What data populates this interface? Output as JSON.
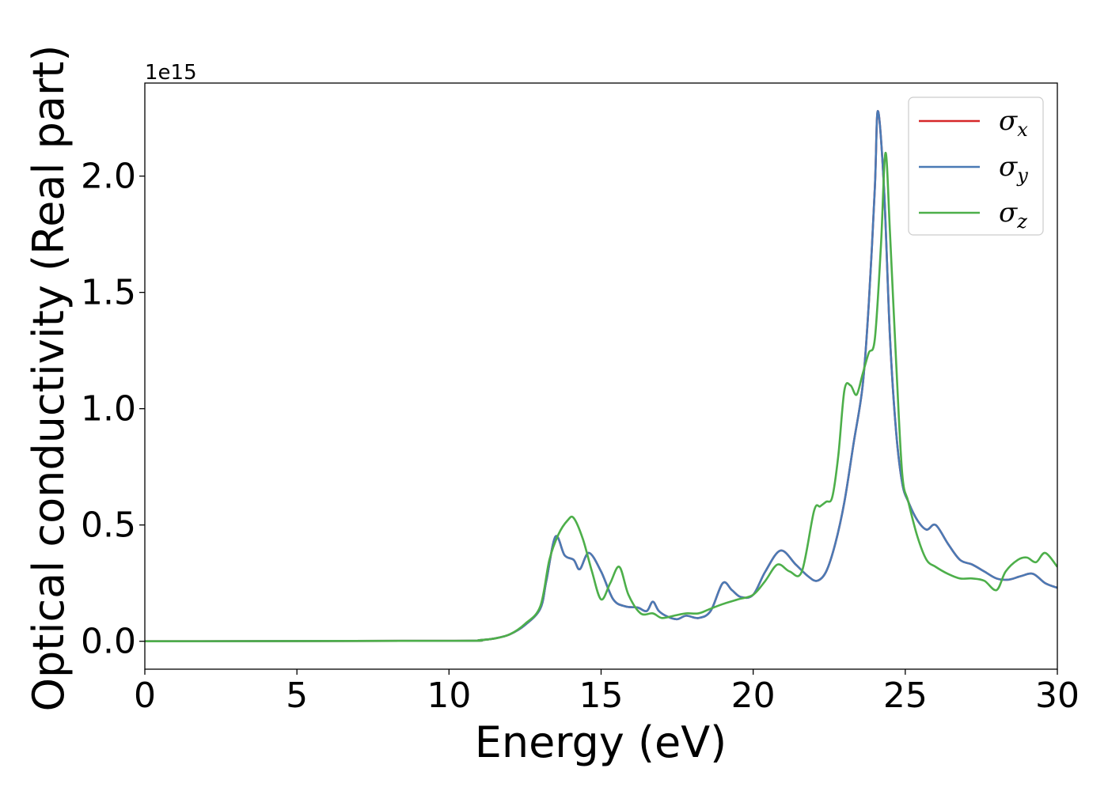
{
  "chart_data": {
    "type": "line",
    "title": "",
    "xlabel": "Energy (eV)",
    "ylabel": "Optical conductivity (Real part)",
    "y_offset_label": "1e15",
    "xlim": [
      0,
      30
    ],
    "ylim": [
      -0.12,
      2.4
    ],
    "xticks": [
      0,
      5,
      10,
      15,
      20,
      25,
      30
    ],
    "xtick_labels": [
      "0",
      "5",
      "10",
      "15",
      "20",
      "25",
      "30"
    ],
    "yticks": [
      0.0,
      0.5,
      1.0,
      1.5,
      2.0
    ],
    "ytick_labels": [
      "0.0",
      "0.5",
      "1.0",
      "1.5",
      "2.0"
    ],
    "grid": false,
    "legend_position": "top-right",
    "series": [
      {
        "name": "σx",
        "symbol": "σ",
        "subscript": "x",
        "color": "#d62728",
        "x": [
          0,
          10,
          11,
          11.5,
          12,
          12.5,
          13,
          13.2,
          13.5,
          13.8,
          14.1,
          14.3,
          14.6,
          15,
          15.4,
          15.8,
          16.2,
          16.5,
          16.7,
          16.9,
          17.2,
          17.5,
          17.8,
          18.2,
          18.6,
          19,
          19.3,
          19.6,
          20,
          20.4,
          20.9,
          21.4,
          21.8,
          22.1,
          22.4,
          22.7,
          23,
          23.3,
          23.6,
          23.8,
          24,
          24.1,
          24.3,
          24.5,
          24.7,
          24.9,
          25.1,
          25.4,
          25.7,
          26,
          26.4,
          26.8,
          27.2,
          27.6,
          28,
          28.4,
          28.8,
          29.2,
          29.6,
          30
        ],
        "y": [
          0,
          0.002,
          0.005,
          0.012,
          0.03,
          0.07,
          0.14,
          0.26,
          0.45,
          0.37,
          0.35,
          0.31,
          0.38,
          0.3,
          0.18,
          0.15,
          0.145,
          0.13,
          0.17,
          0.13,
          0.105,
          0.095,
          0.11,
          0.1,
          0.13,
          0.25,
          0.22,
          0.19,
          0.2,
          0.3,
          0.39,
          0.33,
          0.28,
          0.26,
          0.3,
          0.42,
          0.6,
          0.85,
          1.1,
          1.45,
          1.95,
          2.28,
          1.95,
          1.3,
          0.9,
          0.68,
          0.6,
          0.52,
          0.48,
          0.5,
          0.42,
          0.35,
          0.33,
          0.3,
          0.27,
          0.265,
          0.28,
          0.29,
          0.25,
          0.23
        ]
      },
      {
        "name": "σy",
        "symbol": "σ",
        "subscript": "y",
        "color": "#4a7ab5",
        "x": [
          0,
          10,
          11,
          11.5,
          12,
          12.5,
          13,
          13.2,
          13.5,
          13.8,
          14.1,
          14.3,
          14.6,
          15,
          15.4,
          15.8,
          16.2,
          16.5,
          16.7,
          16.9,
          17.2,
          17.5,
          17.8,
          18.2,
          18.6,
          19,
          19.3,
          19.6,
          20,
          20.4,
          20.9,
          21.4,
          21.8,
          22.1,
          22.4,
          22.7,
          23,
          23.3,
          23.6,
          23.8,
          24,
          24.1,
          24.3,
          24.5,
          24.7,
          24.9,
          25.1,
          25.4,
          25.7,
          26,
          26.4,
          26.8,
          27.2,
          27.6,
          28,
          28.4,
          28.8,
          29.2,
          29.6,
          30
        ],
        "y": [
          0,
          0.002,
          0.005,
          0.012,
          0.03,
          0.07,
          0.14,
          0.26,
          0.45,
          0.37,
          0.35,
          0.31,
          0.38,
          0.3,
          0.18,
          0.15,
          0.145,
          0.13,
          0.17,
          0.13,
          0.105,
          0.095,
          0.11,
          0.1,
          0.13,
          0.25,
          0.22,
          0.19,
          0.2,
          0.3,
          0.39,
          0.33,
          0.28,
          0.26,
          0.3,
          0.42,
          0.6,
          0.85,
          1.1,
          1.45,
          1.95,
          2.28,
          1.95,
          1.3,
          0.9,
          0.68,
          0.6,
          0.52,
          0.48,
          0.5,
          0.42,
          0.35,
          0.33,
          0.3,
          0.27,
          0.265,
          0.28,
          0.29,
          0.25,
          0.23
        ]
      },
      {
        "name": "σz",
        "symbol": "σ",
        "subscript": "z",
        "color": "#4daf4a",
        "x": [
          0,
          10,
          11,
          11.5,
          12,
          12.5,
          13,
          13.3,
          13.6,
          13.9,
          14.1,
          14.4,
          14.7,
          15,
          15.3,
          15.6,
          15.9,
          16.3,
          16.7,
          17,
          17.4,
          17.8,
          18.2,
          18.6,
          19,
          19.5,
          20,
          20.4,
          20.8,
          21.2,
          21.6,
          22,
          22.2,
          22.4,
          22.6,
          22.8,
          23,
          23.2,
          23.4,
          23.6,
          23.8,
          24,
          24.2,
          24.35,
          24.5,
          24.7,
          24.9,
          25.1,
          25.4,
          25.7,
          26,
          26.4,
          26.8,
          27.2,
          27.6,
          28,
          28.3,
          28.7,
          29,
          29.3,
          29.6,
          30
        ],
        "y": [
          0,
          0.002,
          0.005,
          0.012,
          0.03,
          0.075,
          0.15,
          0.35,
          0.46,
          0.52,
          0.53,
          0.44,
          0.3,
          0.18,
          0.25,
          0.32,
          0.2,
          0.12,
          0.12,
          0.1,
          0.11,
          0.12,
          0.12,
          0.14,
          0.16,
          0.18,
          0.2,
          0.26,
          0.33,
          0.3,
          0.3,
          0.56,
          0.58,
          0.6,
          0.62,
          0.8,
          1.08,
          1.1,
          1.06,
          1.15,
          1.24,
          1.3,
          1.7,
          2.1,
          1.75,
          1.2,
          0.72,
          0.6,
          0.45,
          0.35,
          0.32,
          0.29,
          0.27,
          0.27,
          0.26,
          0.22,
          0.3,
          0.35,
          0.36,
          0.34,
          0.38,
          0.32
        ]
      }
    ]
  }
}
